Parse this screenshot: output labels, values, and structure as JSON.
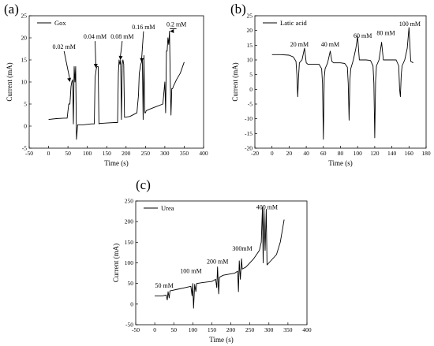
{
  "chart_data": [
    {
      "type": "line",
      "panel_label": "(a)",
      "xlabel": "Time (s)",
      "ylabel": "Current (mA)",
      "xlim": [
        -50,
        400
      ],
      "ylim": [
        -5,
        25
      ],
      "xticks": [
        "-50",
        "0",
        "50",
        "100",
        "150",
        "200",
        "250",
        "300",
        "350",
        "400"
      ],
      "yticks": [
        "-5",
        "0",
        "5",
        "10",
        "15",
        "20",
        "25"
      ],
      "legend": [
        "Gox"
      ],
      "legend_position": "top-left",
      "annotations": [
        {
          "text": "0.02 mM",
          "x": 40,
          "y": 17.5,
          "arrow_to": [
            55,
            10
          ]
        },
        {
          "text": "0.04 mM",
          "x": 120,
          "y": 19.8,
          "arrow_to": [
            122,
            13.2
          ]
        },
        {
          "text": "0.08 mM",
          "x": 190,
          "y": 19.8,
          "arrow_to": [
            185,
            15
          ]
        },
        {
          "text": "0.16 mM",
          "x": 245,
          "y": 22,
          "arrow_to": [
            240,
            14.5
          ]
        },
        {
          "text": "0.2 mM",
          "x": 330,
          "y": 22.6,
          "arrow_to": [
            313,
            21.5
          ]
        }
      ],
      "series": [
        {
          "x": [
            0,
            20,
            40,
            48,
            52,
            55,
            58,
            60,
            62,
            64,
            66,
            68,
            70,
            72,
            75,
            90,
            110,
            118,
            120,
            123,
            125,
            128,
            130,
            132,
            135,
            150,
            170,
            178,
            180,
            182,
            184,
            186,
            188,
            190,
            192,
            194,
            196,
            198,
            210,
            228,
            232,
            234,
            236,
            238,
            240,
            242,
            244,
            246,
            248,
            250,
            252,
            260,
            280,
            295,
            300,
            302,
            304,
            306,
            308,
            310,
            312,
            314,
            316,
            318,
            320,
            322,
            330,
            340,
            350
          ],
          "y": [
            1.5,
            1.7,
            1.8,
            1.8,
            5,
            5,
            9,
            10,
            10.5,
            0.5,
            13.5,
            10,
            13.5,
            -3,
            0.3,
            0.3,
            0.5,
            0.5,
            11,
            13,
            13.5,
            13.5,
            0.5,
            0.6,
            0.6,
            0.7,
            0.8,
            0.8,
            12,
            15,
            14,
            15,
            1.5,
            14,
            15,
            14,
            2,
            2,
            2.2,
            3,
            7,
            12,
            13,
            14,
            14.5,
            15,
            1.5,
            16,
            3,
            3,
            3.5,
            3.8,
            4.5,
            5,
            10,
            3,
            17,
            17,
            20,
            18.5,
            21.5,
            10,
            2.5,
            8.5,
            8.5,
            9,
            10.5,
            12,
            14.5
          ]
        }
      ]
    },
    {
      "type": "line",
      "panel_label": "(b)",
      "xlabel": "Time (s)",
      "ylabel": "Current (mA)",
      "xlim": [
        -20,
        180
      ],
      "ylim": [
        -20,
        25
      ],
      "xticks": [
        "-20",
        "0",
        "20",
        "40",
        "60",
        "80",
        "100",
        "120",
        "140",
        "160",
        "180"
      ],
      "yticks": [
        "-20",
        "-15",
        "-10",
        "-5",
        "0",
        "5",
        "10",
        "15",
        "20",
        "25"
      ],
      "legend": [
        "Latic acid"
      ],
      "legend_position": "top-left",
      "annotations": [
        {
          "text": "20 mM",
          "x": 32,
          "y": 14.5
        },
        {
          "text": "40 mM",
          "x": 68,
          "y": 14.5
        },
        {
          "text": "60 mM",
          "x": 106,
          "y": 17.5
        },
        {
          "text": "80 mM",
          "x": 133,
          "y": 18.5
        },
        {
          "text": "100 mM",
          "x": 161,
          "y": 21.5
        }
      ],
      "series": [
        {
          "x": [
            0,
            10,
            20,
            25,
            28,
            29,
            30,
            31,
            32,
            35,
            38,
            40,
            42,
            45,
            50,
            55,
            58,
            59,
            60,
            61,
            62,
            65,
            68,
            70,
            72,
            75,
            80,
            85,
            88,
            89,
            90,
            91,
            92,
            95,
            98,
            100,
            102,
            105,
            110,
            115,
            118,
            119,
            120,
            121,
            122,
            125,
            128,
            130,
            132,
            135,
            140,
            145,
            148,
            149,
            150,
            151,
            152,
            155,
            158,
            160,
            162,
            165
          ],
          "y": [
            11.8,
            11.8,
            11.6,
            11,
            9.5,
            5,
            -2.5,
            4,
            9,
            10,
            14,
            9,
            8.5,
            8.5,
            8.5,
            8.5,
            7,
            2,
            -17,
            4,
            7,
            9,
            13,
            9.5,
            9,
            9,
            9,
            8.8,
            7.5,
            2,
            -10.5,
            3,
            7,
            10,
            14,
            18,
            10,
            10,
            10,
            9.8,
            8,
            2,
            -16.5,
            3,
            8,
            10,
            16,
            10,
            10,
            10,
            10,
            10,
            8,
            0,
            -2.5,
            5,
            8,
            10,
            14,
            21,
            9.5,
            9
          ]
        }
      ]
    },
    {
      "type": "line",
      "panel_label": "(c)",
      "xlabel": "Time (s)",
      "ylabel": "Current (mA)",
      "xlim": [
        -50,
        400
      ],
      "ylim": [
        -50,
        250
      ],
      "xticks": [
        "-50",
        "0",
        "50",
        "100",
        "150",
        "200",
        "250",
        "300",
        "350",
        "400"
      ],
      "yticks": [
        "-50",
        "0",
        "50",
        "100",
        "150",
        "200",
        "250"
      ],
      "legend": [
        "Urea"
      ],
      "legend_position": "top-left",
      "annotations": [
        {
          "text": "50 mM",
          "x": 25,
          "y": 40
        },
        {
          "text": "100 mM",
          "x": 95,
          "y": 75
        },
        {
          "text": "200 mM",
          "x": 165,
          "y": 98
        },
        {
          "text": "300mM",
          "x": 230,
          "y": 130
        },
        {
          "text": "400 mM",
          "x": 295,
          "y": 230
        }
      ],
      "series": [
        {
          "x": [
            0,
            20,
            30,
            33,
            35,
            38,
            40,
            45,
            60,
            80,
            95,
            98,
            100,
            102,
            105,
            108,
            110,
            125,
            150,
            160,
            163,
            165,
            168,
            170,
            180,
            210,
            218,
            220,
            222,
            225,
            228,
            230,
            240,
            260,
            275,
            280,
            283,
            285,
            287,
            290,
            293,
            295,
            300,
            320,
            330,
            340
          ],
          "y": [
            20,
            20,
            22,
            10,
            30,
            15,
            32,
            33,
            36,
            40,
            43,
            20,
            50,
            -10,
            48,
            30,
            50,
            52,
            55,
            60,
            40,
            90,
            25,
            65,
            70,
            75,
            80,
            30,
            105,
            60,
            110,
            85,
            90,
            110,
            130,
            150,
            235,
            100,
            230,
            130,
            230,
            95,
            100,
            120,
            150,
            205
          ]
        }
      ]
    }
  ]
}
